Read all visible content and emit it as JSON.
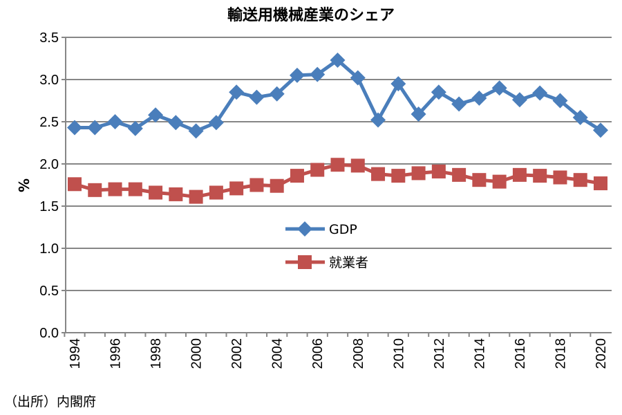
{
  "chart_data": {
    "type": "line",
    "title": "輸送用機械産業のシェア",
    "ylabel": "%",
    "xlabel": "",
    "ylim": [
      0,
      3.5
    ],
    "yticks": [
      "0.0",
      "0.5",
      "1.0",
      "1.5",
      "2.0",
      "2.5",
      "3.0",
      "3.5"
    ],
    "grid": true,
    "legend_position": "center",
    "x": [
      1994,
      1995,
      1996,
      1997,
      1998,
      1999,
      2000,
      2001,
      2002,
      2003,
      2004,
      2005,
      2006,
      2007,
      2008,
      2009,
      2010,
      2011,
      2012,
      2013,
      2014,
      2015,
      2016,
      2017,
      2018,
      2019,
      2020
    ],
    "xtick_labels": [
      "1994",
      "1996",
      "1998",
      "2000",
      "2002",
      "2004",
      "2006",
      "2008",
      "2010",
      "2012",
      "2014",
      "2016",
      "2018",
      "2020"
    ],
    "series": [
      {
        "name": "GDP",
        "color": "#4a7ebb",
        "marker": "diamond",
        "values": [
          2.43,
          2.43,
          2.5,
          2.42,
          2.58,
          2.49,
          2.39,
          2.49,
          2.85,
          2.79,
          2.83,
          3.05,
          3.06,
          3.23,
          3.02,
          2.52,
          2.95,
          2.59,
          2.85,
          2.71,
          2.78,
          2.9,
          2.76,
          2.84,
          2.75,
          2.55,
          2.4
        ]
      },
      {
        "name": "就業者",
        "color": "#c0504d",
        "marker": "square",
        "values": [
          1.76,
          1.69,
          1.7,
          1.7,
          1.66,
          1.64,
          1.61,
          1.66,
          1.71,
          1.75,
          1.74,
          1.86,
          1.93,
          1.99,
          1.98,
          1.88,
          1.86,
          1.89,
          1.91,
          1.87,
          1.81,
          1.79,
          1.87,
          1.86,
          1.84,
          1.81,
          1.77
        ]
      }
    ]
  },
  "source": "（出所）内閣府"
}
